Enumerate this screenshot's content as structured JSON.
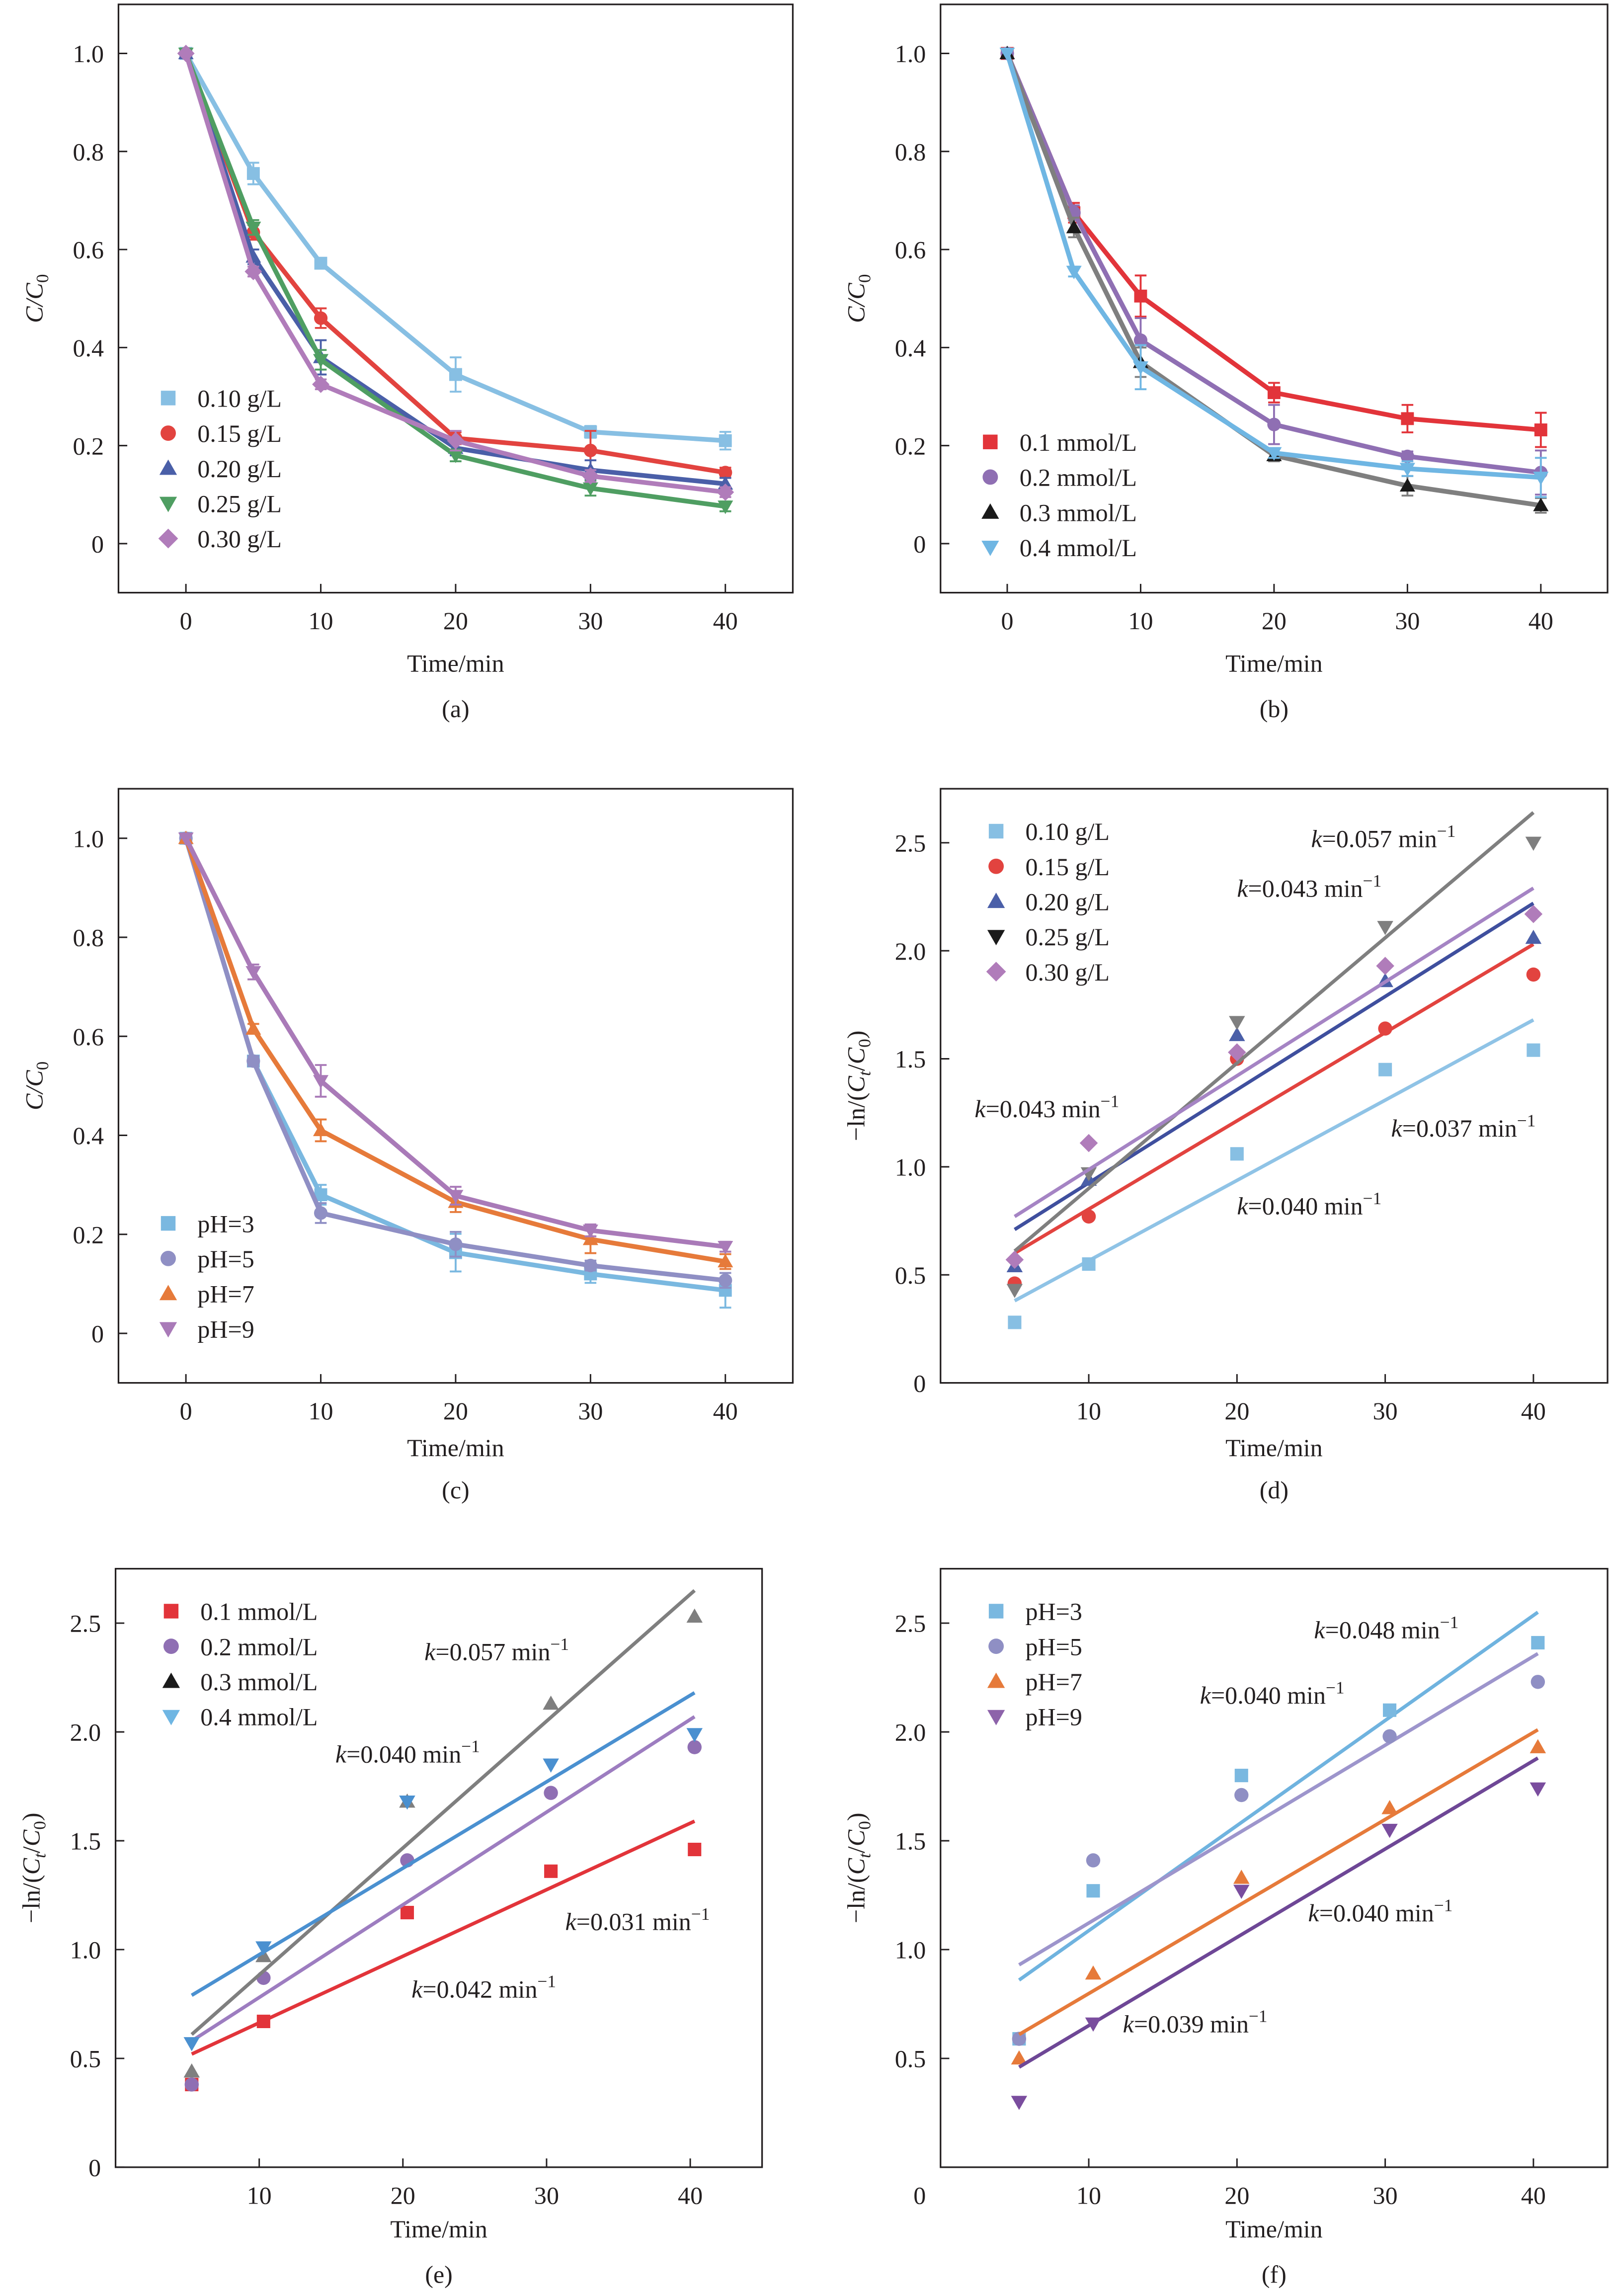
{
  "figure": {
    "panel_labels": [
      "(a)",
      "(b)",
      "(c)",
      "(d)",
      "(e)",
      "(f)"
    ]
  },
  "chart_data": [
    {
      "id": "a",
      "type": "line",
      "caption": "(a)",
      "title": "",
      "xlabel": "Time/min",
      "ylabel": "C/C0",
      "ylabel_parts": {
        "main": "C/C",
        "sub": "0"
      },
      "xlim": [
        -5,
        45
      ],
      "ylim": [
        -0.1,
        1.1
      ],
      "xticks": [
        0,
        10,
        20,
        30,
        40
      ],
      "xtick_labels": [
        "0",
        "10",
        "20",
        "30",
        "40"
      ],
      "yticks": [
        0,
        0.2,
        0.4,
        0.6,
        0.8,
        1.0
      ],
      "ytick_labels": [
        "0",
        "0.2",
        "0.4",
        "0.6",
        "0.8",
        "1.0"
      ],
      "grid": false,
      "legend_position": "bottom-left",
      "x": [
        0,
        5,
        10,
        20,
        30,
        40
      ],
      "series": [
        {
          "name": "0.10 g/L",
          "marker": "square",
          "color": "#87bfe3",
          "values": [
            1.0,
            0.755,
            0.572,
            0.345,
            0.228,
            0.21
          ],
          "errors": [
            0.0,
            0.022,
            0.01,
            0.035,
            0.012,
            0.018
          ]
        },
        {
          "name": "0.15 g/L",
          "marker": "circle",
          "color": "#e2433f",
          "values": [
            1.0,
            0.635,
            0.46,
            0.215,
            0.19,
            0.145
          ],
          "errors": [
            0.0,
            0.015,
            0.02,
            0.012,
            0.04,
            0.01
          ]
        },
        {
          "name": "0.20 g/L",
          "marker": "triangle-up",
          "color": "#4a5fa8",
          "values": [
            1.0,
            0.585,
            0.38,
            0.195,
            0.15,
            0.122
          ],
          "errors": [
            0.0,
            0.015,
            0.035,
            0.015,
            0.02,
            0.012
          ]
        },
        {
          "name": "0.25 g/L",
          "marker": "triangle-down",
          "color": "#4f9e62",
          "values": [
            1.0,
            0.645,
            0.375,
            0.18,
            0.113,
            0.076
          ],
          "errors": [
            0.0,
            0.015,
            0.02,
            0.012,
            0.015,
            0.01
          ]
        },
        {
          "name": "0.30 g/L",
          "marker": "diamond",
          "color": "#b07cba",
          "values": [
            1.0,
            0.555,
            0.325,
            0.21,
            0.138,
            0.105
          ],
          "errors": [
            0.0,
            0.01,
            0.01,
            0.02,
            0.012,
            0.01
          ]
        }
      ],
      "annotations": []
    },
    {
      "id": "b",
      "type": "line",
      "caption": "(b)",
      "title": "",
      "xlabel": "Time/min",
      "ylabel": "C/C0",
      "ylabel_parts": {
        "main": "C/C",
        "sub": "0"
      },
      "xlim": [
        -5,
        45
      ],
      "ylim": [
        -0.1,
        1.1
      ],
      "xticks": [
        0,
        10,
        20,
        30,
        40
      ],
      "xtick_labels": [
        "0",
        "10",
        "20",
        "30",
        "40"
      ],
      "yticks": [
        0,
        0.2,
        0.4,
        0.6,
        0.8,
        1.0
      ],
      "ytick_labels": [
        "0",
        "0.2",
        "0.4",
        "0.6",
        "0.8",
        "1.0"
      ],
      "grid": false,
      "legend_position": "bottom-left",
      "x": [
        0,
        5,
        10,
        20,
        30,
        40
      ],
      "series": [
        {
          "name": "0.1 mmol/L",
          "marker": "square",
          "color": "#e2343a",
          "line_color": "#e2343a",
          "values": [
            1.0,
            0.675,
            0.505,
            0.308,
            0.255,
            0.232
          ],
          "errors": [
            0.0,
            0.02,
            0.042,
            0.02,
            0.028,
            0.035
          ]
        },
        {
          "name": "0.2 mmol/L",
          "marker": "circle",
          "color": "#8f6fb3",
          "line_color": "#8f6fb3",
          "values": [
            1.0,
            0.675,
            0.415,
            0.243,
            0.178,
            0.145
          ],
          "errors": [
            0.0,
            0.015,
            0.045,
            0.04,
            0.01,
            0.045
          ]
        },
        {
          "name": "0.3 mmol/L",
          "marker": "triangle-up",
          "color": "#1a1a1a",
          "line_color": "#7f7f7f",
          "values": [
            1.0,
            0.645,
            0.37,
            0.18,
            0.118,
            0.078
          ],
          "errors": [
            0.0,
            0.02,
            0.03,
            0.012,
            0.02,
            0.015
          ]
        },
        {
          "name": "0.4 mmol/L",
          "marker": "triangle-down",
          "color": "#6fb6e3",
          "line_color": "#6fb6e3",
          "values": [
            1.0,
            0.555,
            0.36,
            0.185,
            0.153,
            0.135
          ],
          "errors": [
            0.0,
            0.01,
            0.045,
            0.01,
            0.015,
            0.04
          ]
        }
      ],
      "annotations": []
    },
    {
      "id": "c",
      "type": "line",
      "caption": "(c)",
      "title": "",
      "xlabel": "Time/min",
      "ylabel": "C/C0",
      "ylabel_parts": {
        "main": "C/C",
        "sub": "0"
      },
      "xlim": [
        -5,
        45
      ],
      "ylim": [
        -0.1,
        1.1
      ],
      "xticks": [
        0,
        10,
        20,
        30,
        40
      ],
      "xtick_labels": [
        "0",
        "10",
        "20",
        "30",
        "40"
      ],
      "yticks": [
        0,
        0.2,
        0.4,
        0.6,
        0.8,
        1.0
      ],
      "ytick_labels": [
        "0",
        "0.2",
        "0.4",
        "0.6",
        "0.8",
        "1.0"
      ],
      "grid": false,
      "legend_position": "bottom-left",
      "x": [
        0,
        5,
        10,
        20,
        30,
        40
      ],
      "series": [
        {
          "name": "pH=3",
          "marker": "square",
          "color": "#7ab8e0",
          "values": [
            1.0,
            0.55,
            0.28,
            0.163,
            0.12,
            0.087
          ],
          "errors": [
            0.0,
            0.01,
            0.02,
            0.038,
            0.018,
            0.035
          ]
        },
        {
          "name": "pH=5",
          "marker": "circle",
          "color": "#8f8fc4",
          "values": [
            1.0,
            0.55,
            0.243,
            0.18,
            0.137,
            0.107
          ],
          "errors": [
            0.0,
            0.01,
            0.02,
            0.025,
            0.01,
            0.015
          ]
        },
        {
          "name": "pH=7",
          "marker": "triangle-up",
          "color": "#e67a3a",
          "values": [
            1.0,
            0.615,
            0.41,
            0.265,
            0.19,
            0.145
          ],
          "errors": [
            0.0,
            0.01,
            0.022,
            0.02,
            0.028,
            0.015
          ]
        },
        {
          "name": "pH=9",
          "marker": "triangle-down",
          "color": "#a97ab8",
          "values": [
            1.0,
            0.73,
            0.51,
            0.278,
            0.208,
            0.175
          ],
          "errors": [
            0.0,
            0.015,
            0.032,
            0.018,
            0.012,
            0.01
          ]
        }
      ],
      "annotations": []
    },
    {
      "id": "d",
      "type": "scatter",
      "caption": "(d)",
      "title": "",
      "xlabel": "Time/min",
      "ylabel": "-ln/(Ct/C0)",
      "ylabel_parts": {
        "pre": "−ln/(",
        "c1": "C",
        "s1": "t",
        "mid": "/",
        "c2": "C",
        "s2": "0",
        "post": ")"
      },
      "xlim": [
        0,
        45
      ],
      "ylim": [
        0,
        2.75
      ],
      "xticks": [
        10,
        20,
        30,
        40
      ],
      "xtick_labels": [
        "10",
        "20",
        "30",
        "40"
      ],
      "yticks": [
        0,
        0.5,
        1.0,
        1.5,
        2.0,
        2.5
      ],
      "ytick_labels": [
        "0",
        "0.5",
        "1.0",
        "1.5",
        "2.0",
        "2.5"
      ],
      "grid": false,
      "legend_position": "top-left",
      "x": [
        5,
        10,
        20,
        30,
        40
      ],
      "series": [
        {
          "name": "0.10 g/L",
          "marker": "square",
          "color": "#87bfe3",
          "line_color": "#8fc3e6",
          "values": [
            0.28,
            0.55,
            1.06,
            1.45,
            1.54
          ],
          "fit": {
            "x": [
              5,
              40
            ],
            "y": [
              0.38,
              1.68
            ]
          }
        },
        {
          "name": "0.15 g/L",
          "marker": "circle",
          "color": "#e2433f",
          "line_color": "#e2433f",
          "values": [
            0.46,
            0.77,
            1.5,
            1.64,
            1.89
          ],
          "fit": {
            "x": [
              5,
              40
            ],
            "y": [
              0.6,
              2.03
            ]
          }
        },
        {
          "name": "0.20 g/L",
          "marker": "triangle-up",
          "color": "#4a5fa8",
          "line_color": "#3f4f9e",
          "values": [
            0.54,
            0.94,
            1.61,
            1.86,
            2.06
          ],
          "fit": {
            "x": [
              5,
              40
            ],
            "y": [
              0.71,
              2.22
            ]
          }
        },
        {
          "name": "0.25 g/L",
          "marker": "triangle-down",
          "color": "#7f7f7f",
          "legend_color": "#1a1a1a",
          "line_color": "#7f7f7f",
          "values": [
            0.43,
            0.97,
            1.67,
            2.11,
            2.5
          ],
          "fit": {
            "x": [
              5,
              40
            ],
            "y": [
              0.61,
              2.64
            ]
          }
        },
        {
          "name": "0.30 g/L",
          "marker": "diamond",
          "color": "#b07cba",
          "line_color": "#a584c4",
          "values": [
            0.57,
            1.11,
            1.53,
            1.93,
            2.17
          ],
          "fit": {
            "x": [
              5,
              40
            ],
            "y": [
              0.77,
              2.29
            ]
          }
        }
      ],
      "annotations": [
        {
          "k": "k",
          "text": "=0.057 min",
          "sup": "−1",
          "x": 25,
          "y": 2.48
        },
        {
          "k": "k",
          "text": "=0.043 min",
          "sup": "−1",
          "x": 20,
          "y": 2.25
        },
        {
          "k": "k",
          "text": "=0.043 min",
          "sup": "−1",
          "x": 2.3,
          "y": 1.23
        },
        {
          "k": "k",
          "text": "=0.037 min",
          "sup": "−1",
          "x": 30.4,
          "y": 1.14
        },
        {
          "k": "k",
          "text": "=0.040 min",
          "sup": "−1",
          "x": 20,
          "y": 0.78
        }
      ]
    },
    {
      "id": "e",
      "type": "scatter",
      "caption": "(e)",
      "title": "",
      "xlabel": "Time/min",
      "ylabel": "-ln/(Ct/C0)",
      "ylabel_parts": {
        "pre": "−ln/(",
        "c1": "C",
        "s1": "t",
        "mid": "/",
        "c2": "C",
        "s2": "0",
        "post": ")"
      },
      "xlim": [
        0,
        45
      ],
      "ylim": [
        0,
        2.75
      ],
      "xticks": [
        10,
        20,
        30,
        40
      ],
      "xtick_labels": [
        "10",
        "20",
        "30",
        "40"
      ],
      "yticks": [
        0,
        0.5,
        1.0,
        1.5,
        2.0,
        2.5
      ],
      "ytick_labels": [
        "0",
        "0.5",
        "1.0",
        "1.5",
        "2.0",
        "2.5"
      ],
      "grid": false,
      "legend_position": "top-left",
      "x": [
        5.3,
        10.3,
        20.3,
        30.3,
        40.3
      ],
      "series": [
        {
          "name": "0.1 mmol/L",
          "marker": "square",
          "color": "#e2343a",
          "line_color": "#e2343a",
          "values": [
            0.38,
            0.67,
            1.17,
            1.36,
            1.46
          ],
          "fit": {
            "x": [
              5.3,
              40.3
            ],
            "y": [
              0.52,
              1.59
            ]
          }
        },
        {
          "name": "0.2 mmol/L",
          "marker": "circle",
          "color": "#8f6fb3",
          "line_color": "#9d7dc0",
          "values": [
            0.38,
            0.87,
            1.41,
            1.72,
            1.93
          ],
          "fit": {
            "x": [
              5.3,
              40.3
            ],
            "y": [
              0.58,
              2.07
            ]
          }
        },
        {
          "name": "0.3 mmol/L",
          "marker": "triangle-up",
          "color": "#7f7f7f",
          "legend_color": "#1a1a1a",
          "line_color": "#7f7f7f",
          "values": [
            0.44,
            0.97,
            1.68,
            2.13,
            2.53
          ],
          "fit": {
            "x": [
              5.3,
              40.3
            ],
            "y": [
              0.61,
              2.65
            ]
          }
        },
        {
          "name": "0.4 mmol/L",
          "marker": "triangle-down",
          "color": "#4a90d0",
          "legend_color": "#6fb6e3",
          "line_color": "#4a90d0",
          "values": [
            0.57,
            1.01,
            1.68,
            1.85,
            1.99
          ],
          "fit": {
            "x": [
              5.3,
              40.3
            ],
            "y": [
              0.79,
              2.18
            ]
          }
        }
      ],
      "annotations": [
        {
          "k": "k",
          "text": "=0.057 min",
          "sup": "−1",
          "x": 21.5,
          "y": 2.33
        },
        {
          "k": "k",
          "text": "=0.040 min",
          "sup": "−1",
          "x": 15.3,
          "y": 1.86
        },
        {
          "k": "k",
          "text": "=0.031 min",
          "sup": "−1",
          "x": 31.3,
          "y": 1.09
        },
        {
          "k": "k",
          "text": "=0.042 min",
          "sup": "−1",
          "x": 20.6,
          "y": 0.78
        }
      ]
    },
    {
      "id": "f",
      "type": "scatter",
      "caption": "(f)",
      "title": "",
      "xlabel": "Time/min",
      "ylabel": "-ln/(Ct/C0)",
      "ylabel_parts": {
        "pre": "−ln/(",
        "c1": "C",
        "s1": "t",
        "mid": "/",
        "c2": "C",
        "s2": "0",
        "post": ")"
      },
      "xlim": [
        0,
        45
      ],
      "ylim": [
        0,
        2.75
      ],
      "xticks": [
        10,
        20,
        30,
        40
      ],
      "xtick_labels": [
        "10",
        "20",
        "30",
        "40"
      ],
      "yticks": [
        0.5,
        1.0,
        1.5,
        2.0,
        2.5
      ],
      "ytick_labels": [
        "0.5",
        "1.0",
        "1.5",
        "2.0",
        "2.5"
      ],
      "origin_label": "0",
      "grid": false,
      "legend_position": "top-left",
      "x": [
        5.3,
        10.3,
        20.3,
        30.3,
        40.3
      ],
      "series": [
        {
          "name": "pH=3",
          "marker": "square",
          "color": "#7ab8e0",
          "line_color": "#6fb3df",
          "values": [
            0.59,
            1.27,
            1.8,
            2.1,
            2.41
          ],
          "fit": {
            "x": [
              5.3,
              40.3
            ],
            "y": [
              0.86,
              2.55
            ]
          }
        },
        {
          "name": "pH=5",
          "marker": "circle",
          "color": "#8f8fc4",
          "line_color": "#9d95cc",
          "values": [
            0.59,
            1.41,
            1.71,
            1.98,
            2.23
          ],
          "fit": {
            "x": [
              5.3,
              40.3
            ],
            "y": [
              0.93,
              2.36
            ]
          }
        },
        {
          "name": "pH=7",
          "marker": "triangle-up",
          "color": "#e67a3a",
          "line_color": "#e67a3a",
          "values": [
            0.5,
            0.89,
            1.33,
            1.65,
            1.93
          ],
          "fit": {
            "x": [
              5.3,
              40.3
            ],
            "y": [
              0.61,
              2.01
            ]
          }
        },
        {
          "name": "pH=9",
          "marker": "triangle-down",
          "color": "#7a4d9e",
          "legend_color": "#8d63aa",
          "line_color": "#6e4796",
          "values": [
            0.3,
            0.66,
            1.27,
            1.55,
            1.74
          ],
          "fit": {
            "x": [
              5.3,
              40.3
            ],
            "y": [
              0.46,
              1.88
            ]
          }
        }
      ],
      "annotations": [
        {
          "k": "k",
          "text": "=0.048 min",
          "sup": "−1",
          "x": 25.2,
          "y": 2.43
        },
        {
          "k": "k",
          "text": "=0.040 min",
          "sup": "−1",
          "x": 17.5,
          "y": 2.13
        },
        {
          "k": "k",
          "text": "=0.040 min",
          "sup": "−1",
          "x": 24.8,
          "y": 1.13
        },
        {
          "k": "k",
          "text": "=0.039 min",
          "sup": "−1",
          "x": 12.3,
          "y": 0.62
        }
      ]
    }
  ]
}
